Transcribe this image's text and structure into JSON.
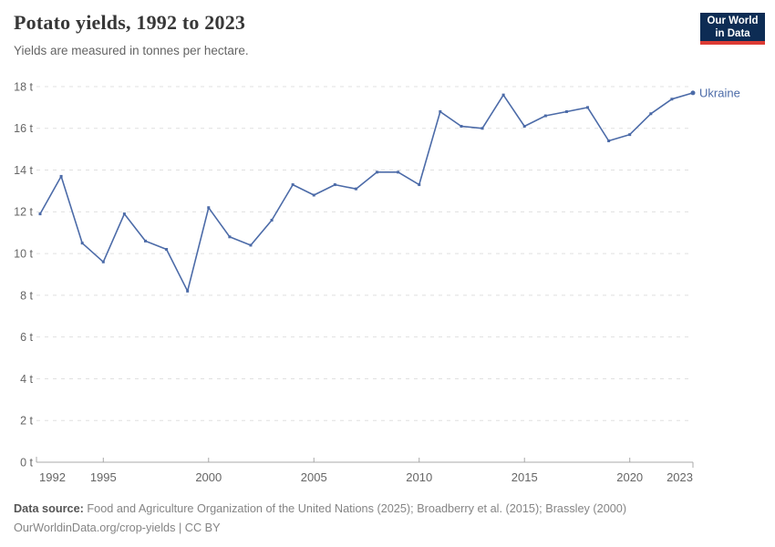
{
  "header": {
    "title": "Potato yields, 1992 to 2023",
    "subtitle": "Yields are measured in tonnes per hectare.",
    "logo": {
      "line1": "Our World",
      "line2": "in Data"
    }
  },
  "chart_data": {
    "type": "line",
    "title": "Potato yields, 1992 to 2023",
    "xlabel": "",
    "ylabel": "tonnes per hectare",
    "unit": "t",
    "ylim": [
      0,
      18
    ],
    "ytick_step": 2,
    "xlim": [
      1992,
      2023
    ],
    "xticks": [
      1992,
      1995,
      2000,
      2005,
      2010,
      2015,
      2020,
      2023
    ],
    "grid": "horizontal-dashed",
    "legend_position": "end-of-line-label",
    "series": [
      {
        "name": "Ukraine",
        "color": "#4C6BA8",
        "x": [
          1992,
          1993,
          1994,
          1995,
          1996,
          1997,
          1998,
          1999,
          2000,
          2001,
          2002,
          2003,
          2004,
          2005,
          2006,
          2007,
          2008,
          2009,
          2010,
          2011,
          2012,
          2013,
          2014,
          2015,
          2016,
          2017,
          2018,
          2019,
          2020,
          2021,
          2022,
          2023
        ],
        "values": [
          11.9,
          13.7,
          10.5,
          9.6,
          11.9,
          10.6,
          10.2,
          8.2,
          12.2,
          10.8,
          10.4,
          11.6,
          13.3,
          12.8,
          13.3,
          13.1,
          13.9,
          13.9,
          13.3,
          16.8,
          16.1,
          16.0,
          17.6,
          16.1,
          16.6,
          16.8,
          17.0,
          15.4,
          15.7,
          16.7,
          17.4,
          17.7
        ]
      }
    ]
  },
  "footer": {
    "datasource_label": "Data source:",
    "datasource_text": "Food and Agriculture Organization of the United Nations (2025); Broadberry et al. (2015); Brassley (2000)",
    "link_line": "OurWorldinData.org/crop-yields | CC BY"
  },
  "colors": {
    "line": "#4C6BA8",
    "entity_label": "#4C6BA8",
    "grid": "#e0e0e0",
    "axis": "#a8a8a8",
    "tick_text": "#666666",
    "title_text": "#373737",
    "subtitle_text": "#646464",
    "logo_bg": "#0d2c54",
    "logo_red": "#dc3b34"
  }
}
